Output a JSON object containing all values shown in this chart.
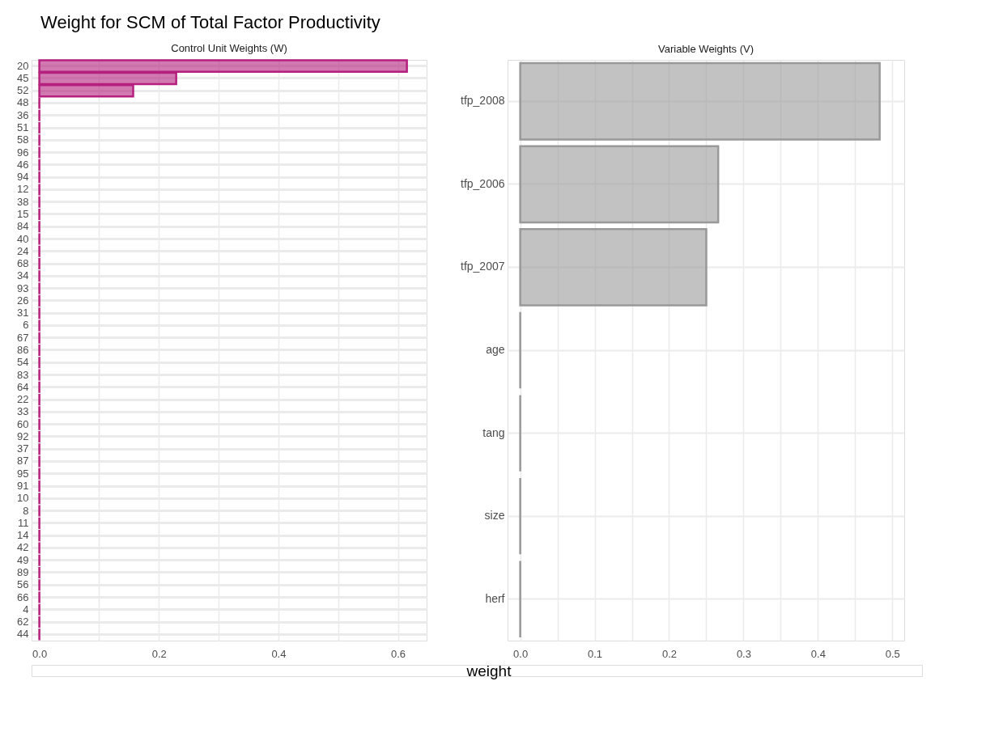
{
  "chart_data": [
    {
      "type": "bar",
      "orientation": "horizontal",
      "title": "Weight for SCM of Total Factor Productivity",
      "subtitle": "Control Unit Weights (W)",
      "xlabel": "weight",
      "categories": [
        "20",
        "45",
        "52",
        "48",
        "36",
        "51",
        "58",
        "96",
        "46",
        "94",
        "12",
        "38",
        "15",
        "84",
        "40",
        "24",
        "68",
        "34",
        "93",
        "26",
        "31",
        "6",
        "67",
        "86",
        "54",
        "83",
        "64",
        "22",
        "33",
        "60",
        "92",
        "37",
        "87",
        "95",
        "91",
        "10",
        "8",
        "11",
        "14",
        "42",
        "49",
        "89",
        "56",
        "66",
        "4",
        "62",
        "44"
      ],
      "series": [
        {
          "color": "#b5207e",
          "values": [
            0.615,
            0.229,
            0.157,
            0,
            0,
            0,
            0,
            0,
            0,
            0,
            0,
            0,
            0,
            0,
            0,
            0,
            0,
            0,
            0,
            0,
            0,
            0,
            0,
            0,
            0,
            0,
            0,
            0,
            0,
            0,
            0,
            0,
            0,
            0,
            0,
            0,
            0,
            0,
            0,
            0,
            0,
            0,
            0,
            0,
            0,
            0,
            0
          ]
        }
      ],
      "xlim": [
        -0.013,
        0.648
      ],
      "xticks": [
        {
          "value": 0,
          "label": "0.0"
        },
        {
          "value": 0.1,
          "label": null
        },
        {
          "value": 0.2,
          "label": "0.2"
        },
        {
          "value": 0.3,
          "label": null
        },
        {
          "value": 0.4,
          "label": "0.4"
        },
        {
          "value": 0.5,
          "label": null
        },
        {
          "value": 0.6,
          "label": "0.6"
        }
      ],
      "grid": true
    },
    {
      "type": "bar",
      "orientation": "horizontal",
      "subtitle": "Variable Weights (V)",
      "categories": [
        "tfp_2008",
        "tfp_2006",
        "tfp_2007",
        "age",
        "tang",
        "size",
        "herf"
      ],
      "series": [
        {
          "color": "#999999",
          "values": [
            0.483,
            0.266,
            0.25,
            0,
            0,
            0,
            0
          ]
        }
      ],
      "xlim": [
        -0.017,
        0.516
      ],
      "xticks": [
        {
          "value": 0,
          "label": "0.0"
        },
        {
          "value": 0.05,
          "label": null
        },
        {
          "value": 0.1,
          "label": "0.1"
        },
        {
          "value": 0.15,
          "label": null
        },
        {
          "value": 0.2,
          "label": "0.2"
        },
        {
          "value": 0.25,
          "label": null
        },
        {
          "value": 0.3,
          "label": "0.3"
        },
        {
          "value": 0.35,
          "label": null
        },
        {
          "value": 0.4,
          "label": "0.4"
        },
        {
          "value": 0.45,
          "label": null
        },
        {
          "value": 0.5,
          "label": "0.5"
        }
      ],
      "grid": true
    }
  ]
}
